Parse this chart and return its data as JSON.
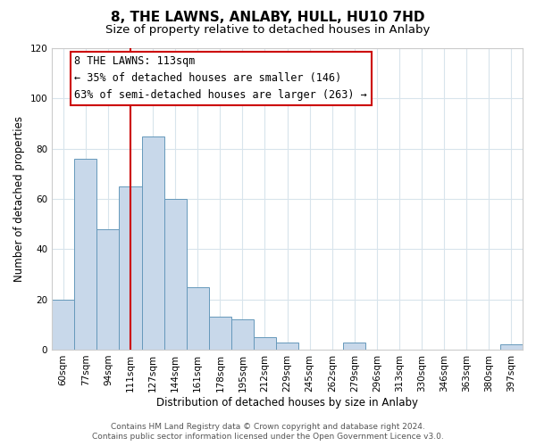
{
  "title": "8, THE LAWNS, ANLABY, HULL, HU10 7HD",
  "subtitle": "Size of property relative to detached houses in Anlaby",
  "xlabel": "Distribution of detached houses by size in Anlaby",
  "ylabel": "Number of detached properties",
  "bar_labels": [
    "60sqm",
    "77sqm",
    "94sqm",
    "111sqm",
    "127sqm",
    "144sqm",
    "161sqm",
    "178sqm",
    "195sqm",
    "212sqm",
    "229sqm",
    "245sqm",
    "262sqm",
    "279sqm",
    "296sqm",
    "313sqm",
    "330sqm",
    "346sqm",
    "363sqm",
    "380sqm",
    "397sqm"
  ],
  "bar_values": [
    20,
    76,
    48,
    65,
    85,
    60,
    25,
    13,
    12,
    5,
    3,
    0,
    0,
    3,
    0,
    0,
    0,
    0,
    0,
    0,
    2
  ],
  "bar_color": "#c8d8ea",
  "bar_edge_color": "#6699bb",
  "vline_x_idx": 3,
  "vline_color": "#cc0000",
  "annotation_line1": "8 THE LAWNS: 113sqm",
  "annotation_line2": "← 35% of detached houses are smaller (146)",
  "annotation_line3": "63% of semi-detached houses are larger (263) →",
  "annotation_box_facecolor": "white",
  "annotation_box_edgecolor": "#cc0000",
  "ylim": [
    0,
    120
  ],
  "yticks": [
    0,
    20,
    40,
    60,
    80,
    100,
    120
  ],
  "grid_color": "#d8e4ec",
  "footer_line1": "Contains HM Land Registry data © Crown copyright and database right 2024.",
  "footer_line2": "Contains public sector information licensed under the Open Government Licence v3.0.",
  "title_fontsize": 11,
  "subtitle_fontsize": 9.5,
  "label_fontsize": 8.5,
  "tick_fontsize": 7.5,
  "annotation_fontsize": 8.5,
  "footer_fontsize": 6.5
}
